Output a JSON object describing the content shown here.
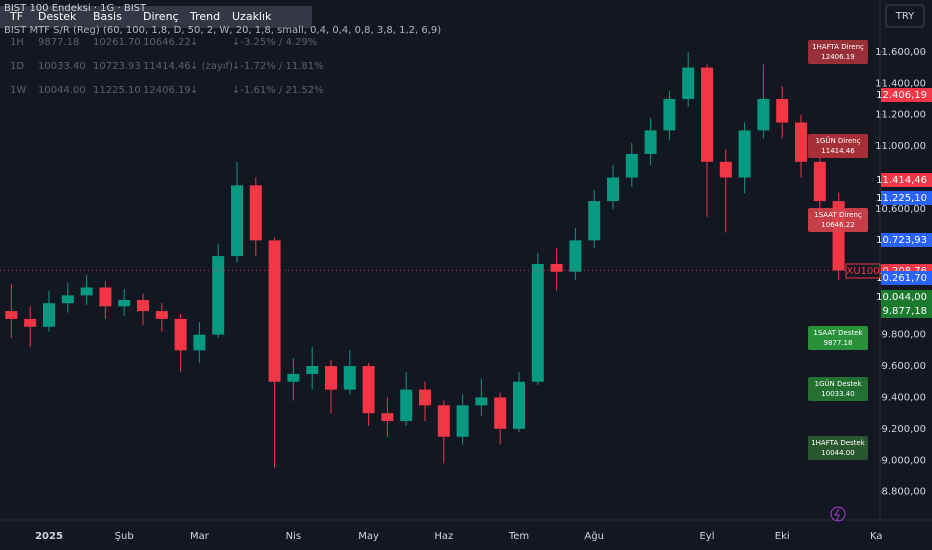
{
  "header": {
    "title": "BIST 100 Endeksi · 1G · BIST",
    "indicator": "BIST MTF S/R (Reg) (60, 100, 1,8, D, 50, 2, W, 20, 1,8, small, 0,4, 0,4, 0,8, 3,8, 1,2, 6,9)"
  },
  "table": {
    "columns": [
      "TF",
      "Destek",
      "Basis",
      "Direnç",
      "Trend",
      "Uzaklık"
    ],
    "rows": [
      [
        "1H",
        "9877.18",
        "10261.70",
        "10646.22",
        "↓",
        "↓-3.25% / 4.29%"
      ],
      [
        "1D",
        "10033.40",
        "10723.93",
        "11414.46",
        "↓ (zayıf)",
        "↓-1.72% / 11.81%"
      ],
      [
        "1W",
        "10044.00",
        "11225.10",
        "12406.19",
        "↓",
        "↓-1.61% / 21.52%"
      ]
    ]
  },
  "chart_data": {
    "type": "candlestick",
    "categories": [
      null,
      null,
      "2025",
      null,
      null,
      null,
      "Şub",
      null,
      null,
      null,
      "Mar",
      null,
      null,
      null,
      null,
      "Nis",
      null,
      null,
      null,
      "May",
      null,
      null,
      null,
      "Haz",
      null,
      null,
      null,
      "Tem",
      null,
      null,
      null,
      "Ağu",
      null,
      null,
      null,
      null,
      null,
      "Eyl",
      null,
      null,
      null,
      "Eki",
      null,
      null,
      null,
      null,
      "Ka"
    ],
    "open": [
      9950,
      9900,
      9850,
      10000,
      10050,
      10100,
      9980,
      10020,
      9950,
      9900,
      9700,
      9800,
      10300,
      10750,
      10400,
      9500,
      9550,
      9600,
      9450,
      9600,
      9300,
      9250,
      9450,
      9350,
      9150,
      9350,
      9400,
      9200,
      9500,
      10250,
      10200,
      10400,
      10650,
      10800,
      10950,
      11100,
      11300,
      11500,
      10900,
      10800,
      11100,
      11300,
      11150,
      10900,
      10650,
      null,
      null
    ],
    "high": [
      10120,
      9980,
      10080,
      10130,
      10180,
      10140,
      10090,
      10060,
      10000,
      9930,
      9880,
      10380,
      10900,
      10800,
      10420,
      9650,
      9720,
      9640,
      9700,
      9620,
      9400,
      9560,
      9500,
      9380,
      9420,
      9520,
      9430,
      9560,
      10320,
      10350,
      10480,
      10720,
      10880,
      11020,
      11180,
      11350,
      11600,
      11520,
      10980,
      11150,
      11520,
      11380,
      11200,
      10950,
      10700,
      null,
      null
    ],
    "low": [
      9780,
      9720,
      9820,
      9940,
      9990,
      9900,
      9920,
      9860,
      9820,
      9560,
      9620,
      9780,
      10260,
      10300,
      8950,
      9380,
      9450,
      9300,
      9420,
      9220,
      9150,
      9220,
      9250,
      8980,
      9100,
      9280,
      9100,
      9180,
      9480,
      10080,
      10150,
      10350,
      10600,
      10740,
      10880,
      11040,
      11250,
      10550,
      10450,
      10700,
      11050,
      11050,
      10800,
      10500,
      10150,
      null,
      null
    ],
    "close": [
      9900,
      9850,
      10000,
      10050,
      10100,
      9980,
      10020,
      9950,
      9900,
      9700,
      9800,
      10300,
      10750,
      10400,
      9500,
      9550,
      9600,
      9450,
      9600,
      9300,
      9250,
      9450,
      9350,
      9150,
      9350,
      9400,
      9200,
      9500,
      10250,
      10200,
      10400,
      10650,
      10800,
      10950,
      11100,
      11300,
      11500,
      10900,
      10800,
      11100,
      11300,
      11150,
      10900,
      10650,
      10208.76,
      null,
      null
    ],
    "up_color": "#089981",
    "down_color": "#f23645",
    "ylim": [
      8620,
      11930
    ],
    "yticks": [
      {
        "value": 11600,
        "label": "11.600,00"
      },
      {
        "value": 11400,
        "label": "11.400,00"
      },
      {
        "value": 11200,
        "label": "11.200,00"
      },
      {
        "value": 11000,
        "label": "11.000,00"
      },
      {
        "value": 10600,
        "label": "10.600,00"
      },
      {
        "value": 9800,
        "label": "9.800,00"
      },
      {
        "value": 9600,
        "label": "9.600,00"
      },
      {
        "value": 9400,
        "label": "9.400,00"
      },
      {
        "value": 9200,
        "label": "9.200,00"
      },
      {
        "value": 9000,
        "label": "9.000,00"
      },
      {
        "value": 8800,
        "label": "8.800,00"
      }
    ],
    "currency": "TRY",
    "symbol": "XU100",
    "price_tags": [
      {
        "label": "12.406,19",
        "color": "#f23645"
      },
      {
        "label": "11.414,46",
        "color": "#f23645"
      },
      {
        "label": "11.225,10",
        "color": "#2962ff"
      },
      {
        "label": "10.723,93",
        "color": "#2962ff"
      },
      {
        "label": "10.208,76",
        "color": "#f23645"
      },
      {
        "label": "10.261,70",
        "color": "#2962ff"
      },
      {
        "label": "10.044,00",
        "color": "#1b7a2e"
      },
      {
        "label": "9.877,18",
        "color": "#1b7a2e"
      }
    ],
    "annotations": [
      {
        "title": "1HAFTA Direnç",
        "text": "12406.19",
        "color": "#a9333a"
      },
      {
        "title": "1GÜN Direnç",
        "text": "11414.46",
        "color": "#b8333b"
      },
      {
        "title": "1SAAT Direnç",
        "text": "10646.22",
        "color": "#d9434b"
      },
      {
        "title": "1SAAT Destek",
        "text": "9877.18",
        "color": "#2e9e3e"
      },
      {
        "title": "1GÜN Destek",
        "text": "10033.40",
        "color": "#267a33"
      },
      {
        "title": "1HAFTA Destek",
        "text": "10044.00",
        "color": "#2c5e30"
      }
    ]
  }
}
